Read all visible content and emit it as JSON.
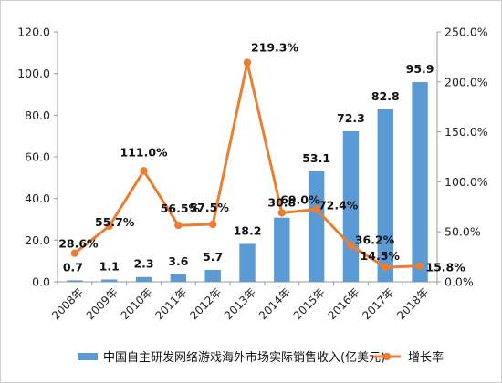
{
  "chart_data": {
    "type": "bar",
    "categories": [
      "2008年",
      "2009年",
      "2010年",
      "2011年",
      "2012年",
      "2013年",
      "2014年",
      "2015年",
      "2016年",
      "2017年",
      "2018年"
    ],
    "series": [
      {
        "name": "中国自主研发网络游戏海外市场实际销售收入(亿美元)",
        "type": "bar",
        "axis": "left",
        "values": [
          0.7,
          1.1,
          2.3,
          3.6,
          5.7,
          18.2,
          30.8,
          53.1,
          72.3,
          82.8,
          95.9
        ],
        "labels": [
          "0.7",
          "1.1",
          "2.3",
          "3.6",
          "5.7",
          "18.2",
          "30.8",
          "53.1",
          "72.3",
          "82.8",
          "95.9"
        ],
        "color": "#5b9bd5"
      },
      {
        "name": "增长率",
        "type": "line",
        "axis": "right",
        "values": [
          28.6,
          55.7,
          111.0,
          56.5,
          57.5,
          219.3,
          69.0,
          72.4,
          36.2,
          14.5,
          15.8
        ],
        "labels": [
          "28.6%",
          "55.7%",
          "111.0%",
          "56.5%",
          "57.5%",
          "219.3%",
          "69.0%",
          "72.4%",
          "36.2%",
          "14.5%",
          "15.8%"
        ],
        "color": "#ed7d31"
      }
    ],
    "y_left": {
      "range": [
        0,
        120
      ],
      "ticks": [
        "0.0",
        "20.0",
        "40.0",
        "60.0",
        "80.0",
        "100.0",
        "120.0"
      ]
    },
    "y_right": {
      "range": [
        0,
        250
      ],
      "unit": "%",
      "ticks": [
        "0.0%",
        "50.0%",
        "100.0%",
        "150.0%",
        "200.0%",
        "250.0%"
      ]
    },
    "grid": false,
    "legend_position": "bottom"
  }
}
